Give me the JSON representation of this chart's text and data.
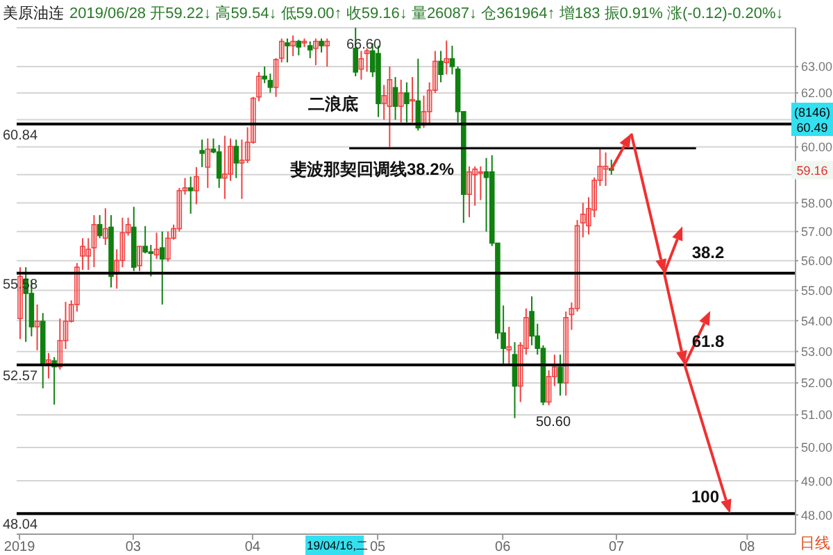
{
  "chart_data": {
    "type": "candlestick",
    "title": "美原油连",
    "subtitle": "2019/06/28 开59.22↓ 高59.54↓ 低59.00↑ 收59.16↓ 量26087↓ 仓361964↑ 增183 振0.91% 涨(-0.12)-0.20%↓",
    "categories": [
      "2019",
      null,
      null,
      null,
      null,
      null,
      null,
      null,
      null,
      null,
      null,
      null,
      null,
      null,
      null,
      null,
      null,
      null,
      null,
      null,
      "03",
      null,
      null,
      null,
      null,
      null,
      null,
      null,
      null,
      null,
      null,
      null,
      null,
      null,
      null,
      null,
      null,
      null,
      null,
      null,
      null,
      "04",
      null,
      null,
      null,
      null,
      null,
      null,
      null,
      null,
      null,
      null,
      null,
      null,
      null,
      null,
      null,
      null,
      null,
      null,
      null,
      null,
      null,
      "05",
      null,
      null,
      null,
      null,
      null,
      null,
      null,
      null,
      null,
      null,
      null,
      null,
      null,
      null,
      null,
      null,
      null,
      null,
      null,
      null,
      null,
      "06",
      null,
      null,
      null,
      null,
      null,
      null,
      null,
      null,
      null,
      null,
      null,
      null,
      null,
      null,
      null,
      null,
      null,
      null,
      null,
      "07",
      null,
      null,
      null,
      null,
      null,
      null,
      null,
      null,
      null,
      null,
      null,
      null,
      null,
      null,
      null,
      null,
      null,
      null,
      null,
      null,
      null,
      null,
      "08",
      null,
      null,
      null,
      null,
      null,
      null,
      null,
      null
    ],
    "ohlc": [
      [
        54.07,
        55.78,
        53.4,
        55.47
      ],
      [
        55.38,
        55.78,
        53.31,
        54.9
      ],
      [
        54.9,
        55.33,
        53.49,
        53.8
      ],
      [
        53.8,
        54.53,
        53.04,
        53.98
      ],
      [
        53.98,
        54.25,
        51.83,
        52.62
      ],
      [
        52.62,
        52.95,
        52.14,
        52.73
      ],
      [
        52.7,
        52.82,
        51.32,
        52.51
      ],
      [
        52.51,
        54.07,
        52.42,
        53.35
      ],
      [
        53.35,
        54.62,
        53.08,
        53.98
      ],
      [
        53.98,
        54.67,
        53.94,
        54.53
      ],
      [
        54.53,
        55.92,
        54.3,
        55.78
      ],
      [
        56.16,
        56.77,
        55.69,
        56.49
      ],
      [
        56.16,
        56.77,
        55.69,
        56.39
      ],
      [
        56.44,
        57.57,
        55.78,
        57.24
      ],
      [
        57.24,
        57.57,
        56.77,
        56.86
      ],
      [
        56.77,
        57.81,
        56.54,
        57.1
      ],
      [
        57.15,
        57.57,
        55.1,
        55.47
      ],
      [
        55.56,
        56.39,
        55.06,
        56.01
      ],
      [
        56.01,
        57.48,
        55.78,
        56.96
      ],
      [
        56.96,
        57.48,
        56.86,
        57.24
      ],
      [
        57.15,
        57.86,
        55.65,
        55.78
      ],
      [
        55.83,
        56.49,
        55.65,
        56.49
      ],
      [
        56.49,
        57.19,
        56.25,
        56.3
      ],
      [
        56.3,
        56.54,
        55.47,
        56.25
      ],
      [
        56.2,
        56.96,
        56.06,
        56.39
      ],
      [
        56.44,
        57.0,
        54.53,
        56.06
      ],
      [
        56.06,
        57.0,
        55.97,
        56.77
      ],
      [
        56.77,
        57.24,
        56.72,
        57.1
      ],
      [
        57.1,
        58.53,
        57.0,
        58.43
      ],
      [
        58.43,
        58.88,
        58.29,
        58.53
      ],
      [
        58.53,
        58.93,
        57.62,
        58.43
      ],
      [
        58.43,
        59.27,
        57.95,
        58.93
      ],
      [
        59.87,
        60.27,
        59.27,
        59.77
      ],
      [
        59.27,
        60.31,
        58.53,
        59.92
      ],
      [
        59.92,
        60.31,
        59.77,
        59.82
      ],
      [
        59.82,
        60.07,
        58.53,
        58.88
      ],
      [
        58.88,
        60.41,
        58.14,
        59.02
      ],
      [
        59.02,
        60.31,
        58.78,
        60.02
      ],
      [
        60.02,
        60.27,
        58.88,
        59.42
      ],
      [
        59.42,
        60.27,
        58.14,
        59.52
      ],
      [
        59.52,
        60.72,
        59.42,
        60.17
      ],
      [
        60.17,
        61.85,
        60.12,
        61.8
      ],
      [
        61.85,
        62.79,
        61.69,
        62.63
      ],
      [
        62.63,
        63.0,
        62.37,
        62.53
      ],
      [
        62.47,
        62.73,
        62.01,
        62.21
      ],
      [
        62.21,
        63.32,
        61.85,
        63.27
      ],
      [
        63.32,
        64.08,
        63.16,
        63.97
      ],
      [
        63.91,
        64.08,
        63.16,
        63.8
      ],
      [
        63.8,
        64.2,
        63.4,
        63.97
      ],
      [
        63.97,
        64.03,
        63.43,
        63.75
      ],
      [
        63.91,
        64.08,
        63.75,
        63.97
      ],
      [
        63.8,
        63.97,
        63.32,
        63.64
      ],
      [
        63.7,
        64.08,
        63.05,
        63.97
      ],
      [
        63.97,
        64.08,
        63.54,
        63.8
      ],
      [
        63.8,
        64.08,
        63.0,
        63.97
      ],
      null,
      null,
      null,
      null,
      [
        63.7,
        64.5,
        62.63,
        62.79
      ],
      [
        62.9,
        63.6,
        62.5,
        63.3
      ],
      [
        63.5,
        63.7,
        62.8,
        63.6
      ],
      [
        63.6,
        63.9,
        62.6,
        62.8
      ],
      [
        63.5,
        63.8,
        61.1,
        61.6
      ],
      [
        61.6,
        62.3,
        61.0,
        61.9
      ],
      [
        61.5,
        63.0,
        60.0,
        62.5
      ],
      [
        62.2,
        62.6,
        61.0,
        61.5
      ],
      [
        61.5,
        62.5,
        60.9,
        62.0
      ],
      [
        62.0,
        62.4,
        60.9,
        61.6
      ],
      [
        61.7,
        62.6,
        60.9,
        61.75
      ],
      [
        61.7,
        63.3,
        60.6,
        60.7
      ],
      [
        60.8,
        61.9,
        60.7,
        61.3
      ],
      [
        61.3,
        62.4,
        60.8,
        62.1
      ],
      [
        62.1,
        63.6,
        62.0,
        63.2
      ],
      [
        63.2,
        63.6,
        62.4,
        62.7
      ],
      [
        63.15,
        64.0,
        62.7,
        63.3
      ],
      [
        63.3,
        63.8,
        62.7,
        63.0
      ],
      [
        62.9,
        63.0,
        60.9,
        61.3
      ],
      [
        61.3,
        61.3,
        57.3,
        58.3
      ],
      [
        58.3,
        59.3,
        57.5,
        59.1
      ],
      [
        59.0,
        59.3,
        57.9,
        59.2
      ],
      [
        59.05,
        59.3,
        58.1,
        59.1
      ],
      [
        59.1,
        59.6,
        57.0,
        58.9
      ],
      [
        59.1,
        59.7,
        56.5,
        56.6
      ],
      [
        56.6,
        56.6,
        53.4,
        53.6
      ],
      [
        53.6,
        54.5,
        52.6,
        53.1
      ],
      [
        53.05,
        53.8,
        52.6,
        53.15
      ],
      [
        52.9,
        53.3,
        50.9,
        51.9
      ],
      [
        51.9,
        53.3,
        51.4,
        53.2
      ],
      [
        53.1,
        54.4,
        52.9,
        54.1
      ],
      [
        54.3,
        54.8,
        53.2,
        53.5
      ],
      [
        53.5,
        53.9,
        52.9,
        53.1
      ],
      [
        53.1,
        53.2,
        51.3,
        51.4
      ],
      [
        51.4,
        52.4,
        51.3,
        52.2
      ],
      [
        52.2,
        52.9,
        51.9,
        52.5
      ],
      [
        52.5,
        52.9,
        51.6,
        52.0
      ],
      [
        52.0,
        54.3,
        51.6,
        54.1
      ],
      [
        54.2,
        54.6,
        53.7,
        54.4
      ],
      [
        54.4,
        57.4,
        54.3,
        57.2
      ],
      [
        57.3,
        58.0,
        56.8,
        57.6
      ],
      [
        57.2,
        58.2,
        56.9,
        57.8
      ],
      [
        57.75,
        58.9,
        57.5,
        58.8
      ],
      [
        58.8,
        59.95,
        58.6,
        59.3
      ],
      [
        59.2,
        59.8,
        58.6,
        59.3
      ],
      [
        59.22,
        59.54,
        59.0,
        59.16
      ],
      null,
      null,
      null,
      null,
      null,
      null,
      null,
      null,
      null,
      null,
      null,
      null,
      null,
      null,
      null,
      null,
      null,
      null,
      null,
      null,
      null,
      null,
      null,
      null,
      null,
      null,
      null,
      null,
      null,
      null,
      null,
      null
    ],
    "series": [
      {
        "type": "line",
        "color": "#000000",
        "values": [
          null,
          null,
          null,
          null,
          null,
          null,
          null,
          null,
          null,
          null,
          null,
          null,
          null,
          null,
          null,
          null,
          null,
          null,
          null,
          null,
          null,
          null,
          null,
          null,
          null,
          null,
          null,
          null,
          null,
          null,
          null,
          null,
          null,
          null,
          null,
          null,
          null,
          null,
          null,
          null,
          null,
          null,
          null,
          null,
          null,
          null,
          null,
          null,
          null,
          null,
          null,
          null,
          null,
          null,
          null,
          null,
          null,
          null,
          59.95,
          59.95,
          59.95,
          59.95,
          59.95,
          59.95,
          59.95,
          59.95,
          59.95,
          59.95,
          59.95,
          59.95,
          59.95,
          59.95,
          59.95,
          59.95,
          59.95,
          59.95,
          59.95,
          59.95,
          59.95,
          59.95,
          59.95,
          59.95,
          59.95,
          59.95,
          59.95,
          59.95,
          59.95,
          59.95,
          59.95,
          59.95,
          59.95,
          59.95,
          59.95,
          59.95,
          59.95,
          59.95,
          59.95,
          59.95,
          59.95,
          59.95,
          59.95,
          59.95,
          59.95,
          59.95,
          59.95,
          59.95,
          59.95,
          59.95,
          59.95,
          59.95,
          59.95,
          59.95,
          59.95,
          59.95,
          59.95,
          59.95,
          59.95,
          59.95,
          59.95,
          59.95,
          null,
          null,
          null,
          null,
          null,
          null,
          null,
          null,
          null,
          null,
          null,
          null,
          null,
          null,
          null,
          null,
          null
        ]
      }
    ],
    "ylim": [
      47.44,
      64.5
    ],
    "yticks": [
      {
        "value": 48,
        "label": "48.00"
      },
      {
        "value": 49,
        "label": "49.00"
      },
      {
        "value": 50,
        "label": "50.00"
      },
      {
        "value": 51,
        "label": "51.00"
      },
      {
        "value": 52,
        "label": "52.00"
      },
      {
        "value": 53,
        "label": "53.00"
      },
      {
        "value": 54,
        "label": "54.00"
      },
      {
        "value": 55,
        "label": "55.00"
      },
      {
        "value": 56,
        "label": "56.00"
      },
      {
        "value": 57,
        "label": "57.00"
      },
      {
        "value": 58,
        "label": "58.00"
      },
      {
        "value": 59,
        "label": null
      },
      {
        "value": 60,
        "label": "60.00"
      },
      {
        "value": 61,
        "label": null
      },
      {
        "value": 62,
        "label": "62.00"
      },
      {
        "value": 63,
        "label": "63.00"
      }
    ],
    "log": "y",
    "grid": "y",
    "ref_lines": [
      {
        "axis": "y",
        "value": 60.84,
        "label": "60.84"
      },
      {
        "axis": "y",
        "value": 55.58,
        "label": "55.58"
      },
      {
        "axis": "y",
        "value": 52.57,
        "label": "52.57"
      },
      {
        "axis": "y",
        "value": 48.04,
        "label": "48.04"
      }
    ],
    "annotations": [
      "66.60",
      "日线",
      "二浪底",
      "斐波那契回调线38.2%",
      "38.2",
      {
        "text": "61.8",
        "y": 52.57
      },
      {
        "text": "100",
        "y": 48.04
      },
      "50.60",
      "19/04/16,二",
      "(8146) 60.49",
      {
        "text": "59.16",
        "y": 59.16
      }
    ]
  }
}
